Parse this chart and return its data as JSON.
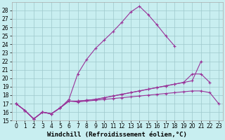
{
  "xlabel": "Windchill (Refroidissement éolien,°C)",
  "background_color": "#c8eef0",
  "grid_color": "#9ec8cc",
  "line_color": "#993399",
  "xlim": [
    -0.5,
    23.5
  ],
  "ylim": [
    15,
    29
  ],
  "yticks": [
    15,
    16,
    17,
    18,
    19,
    20,
    21,
    22,
    23,
    24,
    25,
    26,
    27,
    28
  ],
  "xticks": [
    0,
    1,
    2,
    3,
    4,
    5,
    6,
    7,
    8,
    9,
    10,
    11,
    12,
    13,
    14,
    15,
    16,
    17,
    18,
    19,
    20,
    21,
    22,
    23
  ],
  "line1_x": [
    0,
    1,
    2,
    3,
    4,
    5,
    6,
    7,
    8,
    9,
    10,
    11,
    12,
    13,
    14,
    15,
    16,
    17,
    18,
    19,
    20,
    21,
    22,
    23
  ],
  "line1_y": [
    17.0,
    16.2,
    15.2,
    16.0,
    15.8,
    16.5,
    17.5,
    20.5,
    22.2,
    23.5,
    24.5,
    25.5,
    26.6,
    27.8,
    28.5,
    27.5,
    26.3,
    25.0,
    23.8,
    null,
    null,
    null,
    null,
    null
  ],
  "line2_x": [
    0,
    1,
    2,
    3,
    4,
    5,
    6,
    7,
    8,
    9,
    10,
    11,
    12,
    13,
    14,
    15,
    16,
    17,
    18,
    19,
    20,
    21,
    22,
    23
  ],
  "line2_y": [
    17.0,
    16.2,
    15.2,
    16.0,
    15.8,
    16.5,
    17.3,
    17.3,
    17.4,
    17.5,
    17.7,
    17.9,
    18.1,
    18.3,
    18.5,
    18.7,
    18.9,
    19.1,
    19.3,
    19.5,
    19.7,
    22.0,
    null,
    null
  ],
  "line3_x": [
    0,
    1,
    2,
    3,
    4,
    5,
    6,
    7,
    8,
    9,
    10,
    11,
    12,
    13,
    14,
    15,
    16,
    17,
    18,
    19,
    20,
    21,
    22,
    23
  ],
  "line3_y": [
    17.0,
    16.2,
    15.2,
    16.0,
    15.8,
    16.5,
    17.3,
    17.3,
    17.4,
    17.5,
    17.7,
    17.9,
    18.1,
    18.3,
    18.5,
    18.7,
    18.9,
    19.1,
    19.3,
    19.5,
    20.5,
    20.5,
    19.5,
    null
  ],
  "line4_x": [
    0,
    1,
    2,
    3,
    4,
    5,
    6,
    7,
    8,
    9,
    10,
    11,
    12,
    13,
    14,
    15,
    16,
    17,
    18,
    19,
    20,
    21,
    22,
    23
  ],
  "line4_y": [
    17.0,
    16.2,
    15.2,
    16.0,
    15.8,
    16.5,
    17.3,
    17.2,
    17.3,
    17.4,
    17.5,
    17.6,
    17.7,
    17.8,
    17.9,
    18.0,
    18.1,
    18.2,
    18.3,
    18.4,
    18.5,
    18.5,
    18.3,
    17.0
  ],
  "xlabel_fontsize": 6.5,
  "tick_fontsize": 5.5,
  "figwidth": 3.2,
  "figheight": 2.0,
  "dpi": 100
}
